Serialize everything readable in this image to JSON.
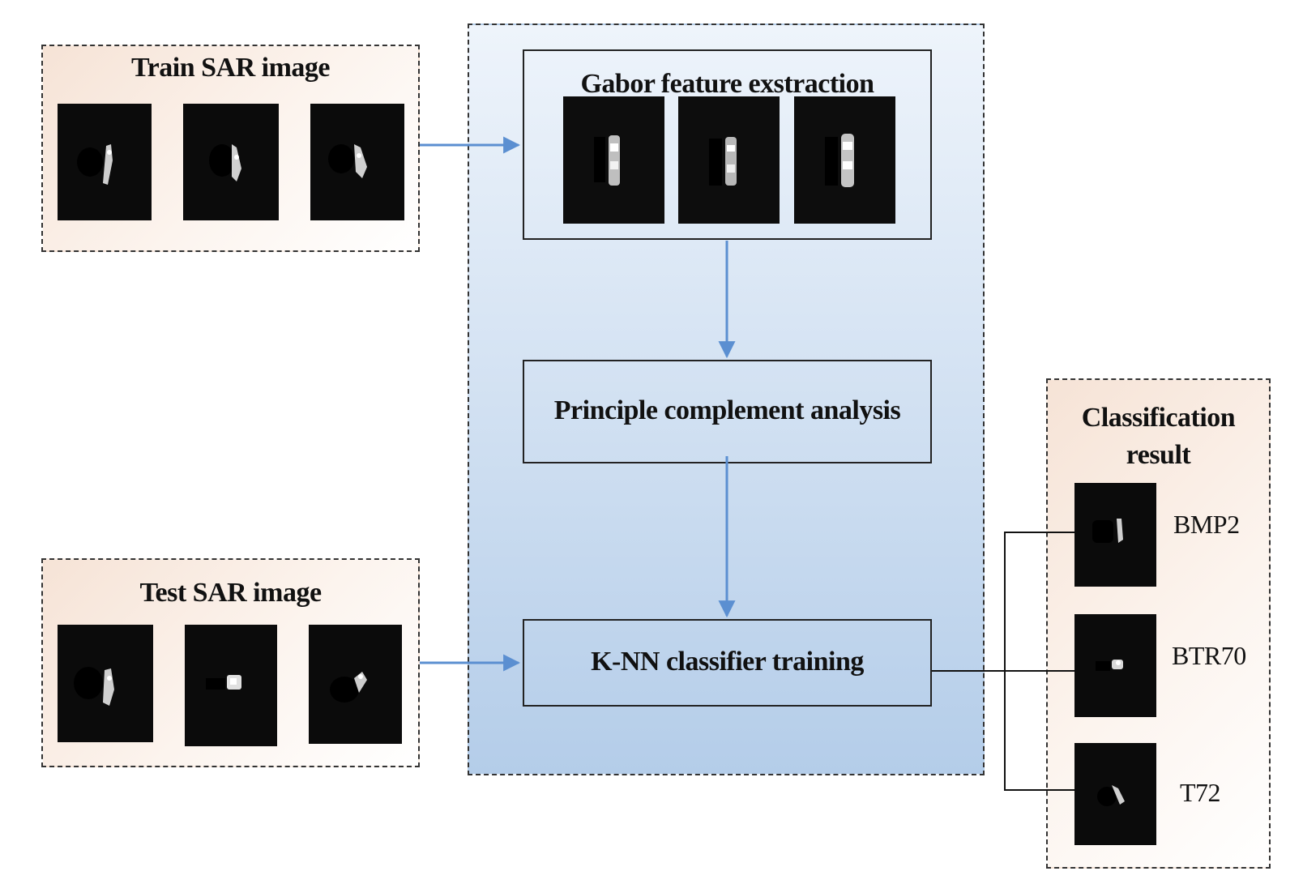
{
  "train": {
    "title": "Train SAR image"
  },
  "test": {
    "title": "Test SAR image"
  },
  "gabor": {
    "title": "Gabor feature exstraction"
  },
  "pca": {
    "title": "Principle complement analysis"
  },
  "knn": {
    "title": "K-NN classifier training"
  },
  "result": {
    "title_line1": "Classification",
    "title_line2": "result",
    "classes": [
      "BMP2",
      "BTR70",
      "T72"
    ]
  },
  "colors": {
    "arrow": "#5b8fd1",
    "line": "#111111",
    "warm_panel": "#f6e3d6",
    "blue_panel": "#b4cde9"
  }
}
